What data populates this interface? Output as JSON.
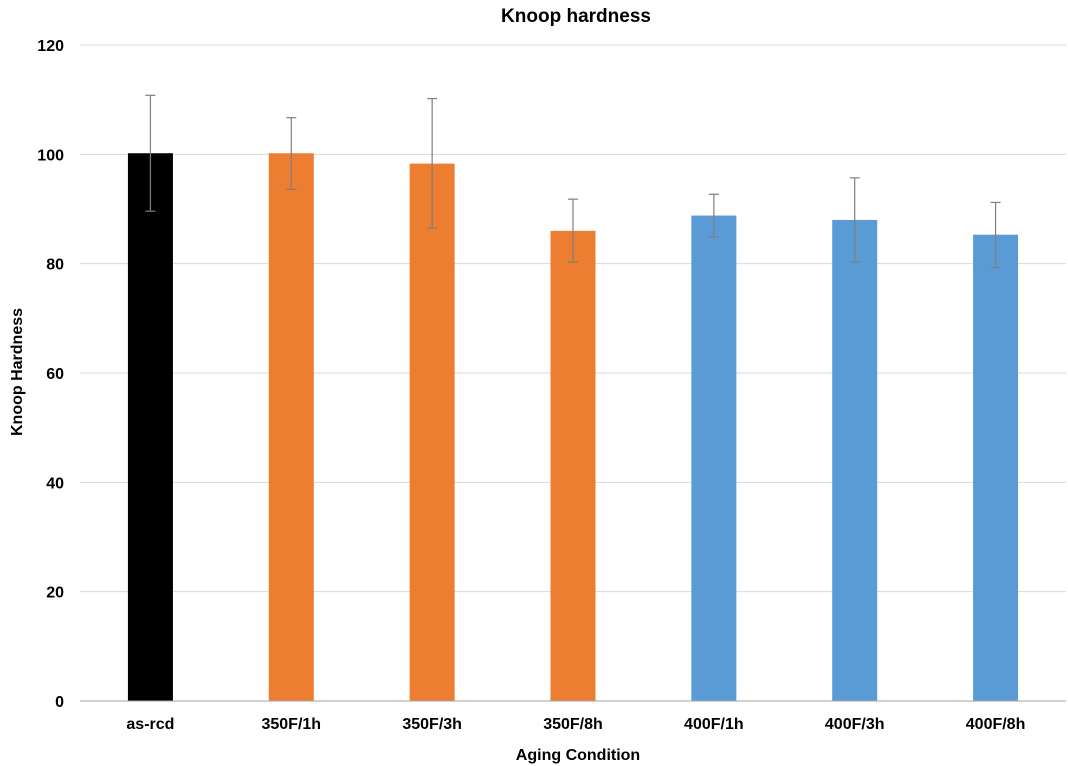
{
  "chart_data": {
    "type": "bar",
    "title": "Knoop hardness",
    "xlabel": "Aging Condition",
    "ylabel": "Knoop Hardness",
    "ylim": [
      0,
      120
    ],
    "yticks": [
      0,
      20,
      40,
      60,
      80,
      100,
      120
    ],
    "grid": true,
    "legend": "none",
    "categories": [
      "as-rcd",
      "350F/1h",
      "350F/3h",
      "350F/8h",
      "400F/1h",
      "400F/3h",
      "400F/8h"
    ],
    "values": [
      100.2,
      100.2,
      98.3,
      86.0,
      88.8,
      88.0,
      85.3
    ],
    "error_low": [
      89.6,
      93.6,
      86.5,
      80.3,
      84.9,
      80.3,
      79.3
    ],
    "error_high": [
      110.8,
      106.7,
      110.2,
      91.8,
      92.7,
      95.7,
      91.2
    ],
    "colors": [
      "#000000",
      "#ED7D31",
      "#ED7D31",
      "#ED7D31",
      "#5B9BD5",
      "#5B9BD5",
      "#5B9BD5"
    ]
  }
}
